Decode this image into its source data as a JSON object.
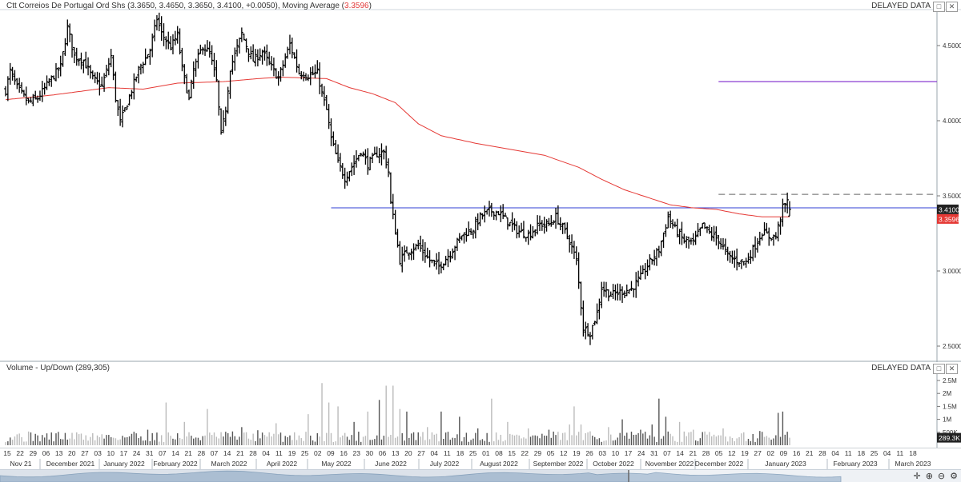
{
  "price_panel": {
    "title": "Ctt Correios De Portugal Ord Shs (3.3650, 3.4650, 3.3650, 3.4100, +0.0050), Moving Average (",
    "ma_value": "3.3596",
    "title_close": ")",
    "delayed": "DELAYED DATA",
    "price_tag": "3.4100",
    "ma_tag": "3.3596",
    "colors": {
      "price_bars": "#000000",
      "moving_average": "#e53935",
      "support_line": "#2f3fd6",
      "target_line": "#8a3bd1",
      "dashed_line": "#666666",
      "price_tag_bg": "#222222",
      "ma_tag_bg": "#e53935"
    }
  },
  "volume_panel": {
    "title": "Volume - Up/Down (289,305)",
    "delayed": "DELAYED DATA",
    "value_tag": "289.3K"
  },
  "controls": {
    "close": "✕",
    "expand": "□"
  },
  "x_axis": {
    "days": [
      "15",
      "22",
      "29",
      "06",
      "13",
      "20",
      "27",
      "03",
      "10",
      "17",
      "24",
      "31",
      "07",
      "14",
      "21",
      "28",
      "07",
      "14",
      "21",
      "28",
      "04",
      "11",
      "19",
      "25",
      "02",
      "09",
      "16",
      "23",
      "30",
      "06",
      "13",
      "20",
      "27",
      "04",
      "11",
      "18",
      "25",
      "01",
      "08",
      "15",
      "22",
      "29",
      "05",
      "12",
      "19",
      "26",
      "03",
      "10",
      "17",
      "24",
      "31",
      "07",
      "14",
      "21",
      "28",
      "05",
      "12",
      "19",
      "27",
      "02",
      "09",
      "16",
      "21",
      "28",
      "04",
      "11",
      "18",
      "25",
      "04",
      "11",
      "18"
    ],
    "months": [
      "Nov 21",
      "December 2021",
      "January 2022",
      "February 2022",
      "March 2022",
      "April 2022",
      "May 2022",
      "June 2022",
      "July 2022",
      "August 2022",
      "September 2022",
      "October 2022",
      "November 2022",
      "December 2022",
      "January 2023",
      "February 2023",
      "March 2023"
    ]
  },
  "chart_data": [
    {
      "type": "bar",
      "chart_style": "ohlc",
      "title": "Ctt Correios De Portugal Ord Shs (3.3650, 3.4650, 3.3650, 3.4100, +0.0050), Moving Average (3.3596)",
      "last_bar": {
        "open": 3.365,
        "high": 3.465,
        "low": 3.365,
        "close": 3.41,
        "change": 0.005
      },
      "y_ticks": [
        "4.5000",
        "4.0000",
        "3.5000",
        "3.0000",
        "2.5000"
      ],
      "ylim": [
        2.42,
        4.72
      ],
      "grid": false,
      "price_close_anchors": [
        [
          0,
          4.2
        ],
        [
          2,
          4.33
        ],
        [
          5,
          4.22
        ],
        [
          10,
          4.12
        ],
        [
          14,
          4.15
        ],
        [
          20,
          4.28
        ],
        [
          24,
          4.36
        ],
        [
          27,
          4.62
        ],
        [
          30,
          4.43
        ],
        [
          34,
          4.4
        ],
        [
          38,
          4.28
        ],
        [
          42,
          4.23
        ],
        [
          46,
          4.43
        ],
        [
          48,
          4.15
        ],
        [
          50,
          3.99
        ],
        [
          54,
          4.16
        ],
        [
          58,
          4.34
        ],
        [
          63,
          4.47
        ],
        [
          66,
          4.68
        ],
        [
          68,
          4.58
        ],
        [
          72,
          4.49
        ],
        [
          75,
          4.57
        ],
        [
          77,
          4.35
        ],
        [
          80,
          4.14
        ],
        [
          82,
          4.34
        ],
        [
          86,
          4.5
        ],
        [
          89,
          4.45
        ],
        [
          92,
          4.26
        ],
        [
          94,
          3.9
        ],
        [
          96,
          4.08
        ],
        [
          98,
          4.35
        ],
        [
          100,
          4.44
        ],
        [
          103,
          4.58
        ],
        [
          106,
          4.46
        ],
        [
          108,
          4.4
        ],
        [
          112,
          4.46
        ],
        [
          115,
          4.38
        ],
        [
          119,
          4.28
        ],
        [
          124,
          4.51
        ],
        [
          128,
          4.32
        ],
        [
          132,
          4.3
        ],
        [
          136,
          4.32
        ],
        [
          138,
          4.18
        ],
        [
          140,
          4.07
        ],
        [
          142,
          3.88
        ],
        [
          145,
          3.72
        ],
        [
          148,
          3.62
        ],
        [
          152,
          3.72
        ],
        [
          155,
          3.8
        ],
        [
          158,
          3.71
        ],
        [
          162,
          3.78
        ],
        [
          165,
          3.79
        ],
        [
          167,
          3.66
        ],
        [
          168,
          3.45
        ],
        [
          169,
          3.36
        ],
        [
          172,
          3.07
        ],
        [
          175,
          3.13
        ],
        [
          180,
          3.17
        ],
        [
          185,
          3.07
        ],
        [
          189,
          3.03
        ],
        [
          194,
          3.12
        ],
        [
          199,
          3.24
        ],
        [
          204,
          3.28
        ],
        [
          207,
          3.36
        ],
        [
          211,
          3.4
        ],
        [
          215,
          3.39
        ],
        [
          219,
          3.33
        ],
        [
          223,
          3.27
        ],
        [
          228,
          3.24
        ],
        [
          233,
          3.31
        ],
        [
          237,
          3.31
        ],
        [
          240,
          3.36
        ],
        [
          243,
          3.29
        ],
        [
          246,
          3.2
        ],
        [
          249,
          3.07
        ],
        [
          252,
          2.62
        ],
        [
          255,
          2.59
        ],
        [
          258,
          2.72
        ],
        [
          260,
          2.89
        ],
        [
          264,
          2.84
        ],
        [
          268,
          2.86
        ],
        [
          273,
          2.88
        ],
        [
          277,
          2.96
        ],
        [
          281,
          3.06
        ],
        [
          285,
          3.14
        ],
        [
          289,
          3.36
        ],
        [
          292,
          3.28
        ],
        [
          296,
          3.2
        ],
        [
          300,
          3.19
        ],
        [
          304,
          3.3
        ],
        [
          308,
          3.24
        ],
        [
          311,
          3.21
        ],
        [
          315,
          3.1
        ],
        [
          319,
          3.07
        ],
        [
          323,
          3.06
        ],
        [
          327,
          3.17
        ],
        [
          330,
          3.26
        ],
        [
          333,
          3.23
        ],
        [
          336,
          3.23
        ],
        [
          339,
          3.42
        ],
        [
          341,
          3.46
        ],
        [
          342,
          3.41
        ]
      ],
      "moving_average_anchors": [
        [
          0,
          4.14
        ],
        [
          20,
          4.17
        ],
        [
          45,
          4.22
        ],
        [
          60,
          4.21
        ],
        [
          75,
          4.25
        ],
        [
          95,
          4.26
        ],
        [
          110,
          4.28
        ],
        [
          120,
          4.29
        ],
        [
          140,
          4.28
        ],
        [
          150,
          4.22
        ],
        [
          160,
          4.18
        ],
        [
          170,
          4.12
        ],
        [
          180,
          3.98
        ],
        [
          190,
          3.9
        ],
        [
          205,
          3.85
        ],
        [
          220,
          3.81
        ],
        [
          235,
          3.77
        ],
        [
          250,
          3.69
        ],
        [
          260,
          3.61
        ],
        [
          270,
          3.54
        ],
        [
          280,
          3.49
        ],
        [
          290,
          3.44
        ],
        [
          300,
          3.42
        ],
        [
          310,
          3.41
        ],
        [
          320,
          3.38
        ],
        [
          330,
          3.36
        ],
        [
          342,
          3.36
        ]
      ],
      "horizontal_lines": [
        {
          "name": "support",
          "y": 3.42,
          "x_from": 142
        },
        {
          "name": "dashed",
          "y": 3.51,
          "x_from": 311
        },
        {
          "name": "target",
          "y": 4.26,
          "x_from": 311
        }
      ]
    },
    {
      "type": "bar",
      "title": "Volume - Up/Down (289,305)",
      "y_ticks": [
        "2.5M",
        "2M",
        "1.5M",
        "1M",
        "500K"
      ],
      "ylim": [
        0,
        2750000
      ],
      "last_value": 289305,
      "volume_spikes": [
        [
          5,
          420000
        ],
        [
          14,
          380000
        ],
        [
          22,
          460000
        ],
        [
          33,
          450000
        ],
        [
          45,
          400000
        ],
        [
          56,
          520000
        ],
        [
          62,
          600000
        ],
        [
          70,
          1650000
        ],
        [
          78,
          900000
        ],
        [
          88,
          1400000
        ],
        [
          96,
          520000
        ],
        [
          103,
          700000
        ],
        [
          110,
          580000
        ],
        [
          118,
          850000
        ],
        [
          126,
          500000
        ],
        [
          132,
          1200000
        ],
        [
          138,
          2400000
        ],
        [
          141,
          1650000
        ],
        [
          145,
          1500000
        ],
        [
          152,
          900000
        ],
        [
          158,
          1300000
        ],
        [
          163,
          1750000
        ],
        [
          166,
          2300000
        ],
        [
          169,
          2300000
        ],
        [
          172,
          1400000
        ],
        [
          175,
          1300000
        ],
        [
          184,
          700000
        ],
        [
          190,
          1300000
        ],
        [
          198,
          1100000
        ],
        [
          206,
          650000
        ],
        [
          212,
          1800000
        ],
        [
          219,
          900000
        ],
        [
          228,
          650000
        ],
        [
          237,
          600000
        ],
        [
          246,
          800000
        ],
        [
          248,
          1500000
        ],
        [
          251,
          800000
        ],
        [
          263,
          700000
        ],
        [
          269,
          1000000
        ],
        [
          277,
          600000
        ],
        [
          282,
          800000
        ],
        [
          285,
          1800000
        ],
        [
          288,
          1100000
        ],
        [
          294,
          900000
        ],
        [
          300,
          600000
        ],
        [
          313,
          650000
        ],
        [
          322,
          500000
        ],
        [
          329,
          550000
        ],
        [
          337,
          1250000
        ],
        [
          339,
          1300000
        ],
        [
          341,
          520000
        ],
        [
          342,
          289305
        ]
      ]
    }
  ]
}
